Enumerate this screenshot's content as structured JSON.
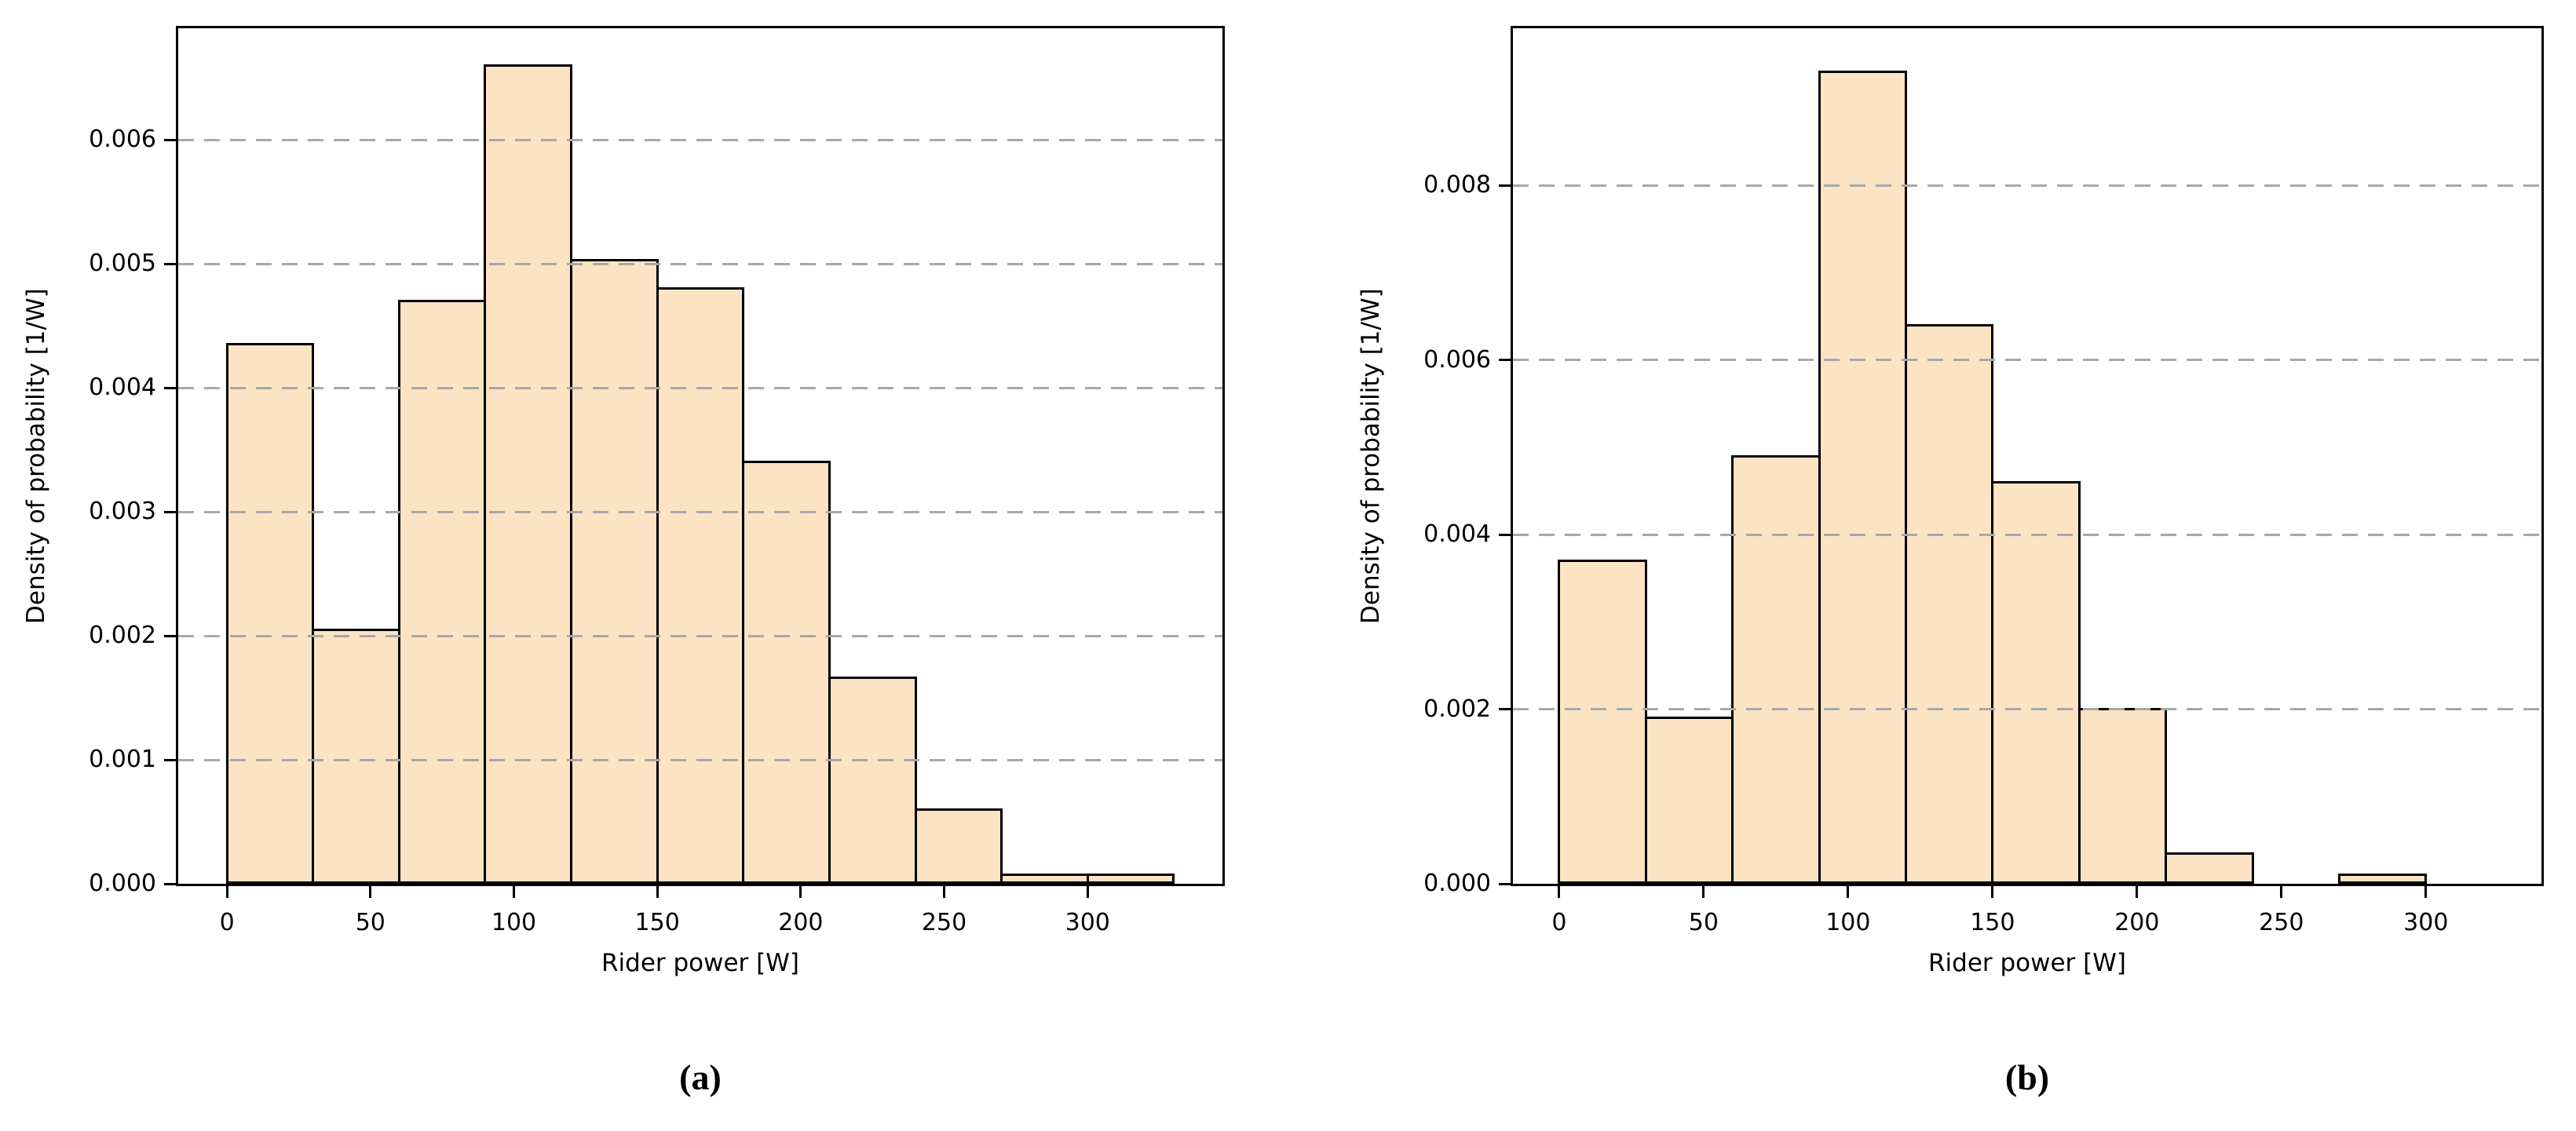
{
  "figure": {
    "background": "#ffffff",
    "bar_fill": "#fbe3c4",
    "bar_edge": "#000000",
    "grid_color": "#a8a8a8",
    "axis_color": "#000000",
    "text_color": "#000000"
  },
  "chart_data": [
    {
      "type": "bar",
      "subtype": "histogram",
      "panel_label": "(a)",
      "title": "",
      "xlabel": "Rider power [W]",
      "ylabel": "Density of probability [1/W]",
      "bin_edges": [
        0,
        30,
        60,
        90,
        120,
        150,
        180,
        210,
        240,
        270,
        300,
        330
      ],
      "values": [
        0.00435,
        0.00205,
        0.0047,
        0.0066,
        0.00503,
        0.0048,
        0.0034,
        0.00166,
        0.0006,
        7e-05,
        7e-05
      ],
      "x_ticks": [
        0,
        50,
        100,
        150,
        200,
        250,
        300
      ],
      "y_ticks": [
        0,
        0.001,
        0.002,
        0.003,
        0.004,
        0.005,
        0.006
      ],
      "y_tick_labels": [
        "0.000",
        "0.001",
        "0.002",
        "0.003",
        "0.004",
        "0.005",
        "0.006"
      ],
      "xlim": [
        -17,
        347
      ],
      "ylim": [
        0,
        0.0069
      ],
      "grid": "horizontal-dashed",
      "legend": "none"
    },
    {
      "type": "bar",
      "subtype": "histogram",
      "panel_label": "(b)",
      "title": "",
      "xlabel": "Rider power [W]",
      "ylabel": "Density of probability [1/W]",
      "bin_edges": [
        0,
        30,
        60,
        90,
        120,
        150,
        180,
        210,
        240,
        270,
        300
      ],
      "values": [
        0.0037,
        0.0019,
        0.0049,
        0.0093,
        0.0064,
        0.0046,
        0.002,
        0.00035,
        0,
        0.0001
      ],
      "x_ticks": [
        0,
        50,
        100,
        150,
        200,
        250,
        300
      ],
      "y_ticks": [
        0,
        0.002,
        0.004,
        0.006,
        0.008
      ],
      "y_tick_labels": [
        "0.000",
        "0.002",
        "0.004",
        "0.006",
        "0.008"
      ],
      "xlim": [
        -16,
        340
      ],
      "ylim": [
        0,
        0.0098
      ],
      "grid": "horizontal-dashed",
      "legend": "none"
    }
  ]
}
